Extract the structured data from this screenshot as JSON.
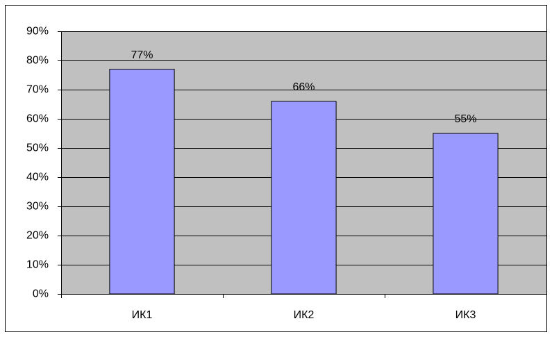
{
  "chart_data": {
    "type": "bar",
    "categories": [
      "ИК1",
      "ИК2",
      "ИК3"
    ],
    "values": [
      77,
      66,
      55
    ],
    "value_labels": [
      "77%",
      "66%",
      "55%"
    ],
    "color": "#9999ff",
    "ylim": [
      0,
      90
    ],
    "yticks": [
      {
        "value": 0,
        "label": "0%"
      },
      {
        "value": 10,
        "label": "10%"
      },
      {
        "value": 20,
        "label": "20%"
      },
      {
        "value": 30,
        "label": "30%"
      },
      {
        "value": 40,
        "label": "40%"
      },
      {
        "value": 50,
        "label": "50%"
      },
      {
        "value": 60,
        "label": "60%"
      },
      {
        "value": 70,
        "label": "70%"
      },
      {
        "value": 80,
        "label": "80%"
      },
      {
        "value": 90,
        "label": "90%"
      }
    ],
    "grid": true
  }
}
